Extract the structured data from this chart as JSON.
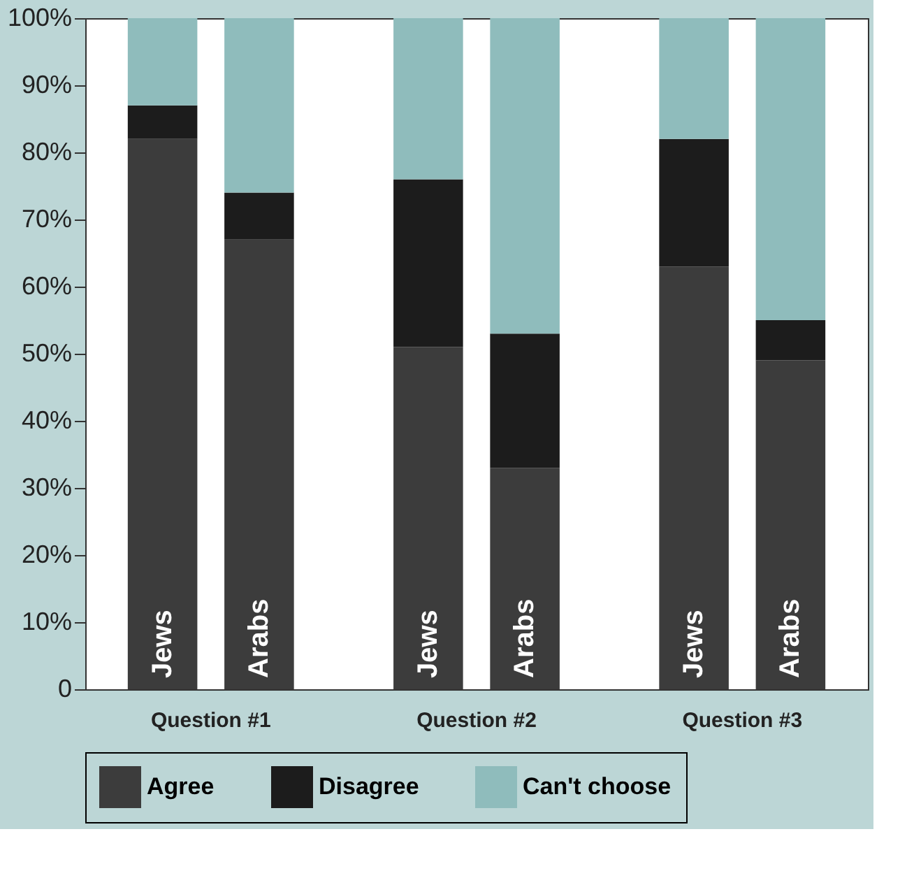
{
  "chart_data": {
    "type": "bar",
    "stacked": true,
    "categories": [
      "Jews",
      "Arabs",
      "Jews",
      "Arabs",
      "Jews",
      "Arabs"
    ],
    "series": [
      {
        "name": "Agree",
        "color": "#3c3c3c",
        "values": [
          82,
          67,
          51,
          33,
          63,
          49
        ]
      },
      {
        "name": "Disagree",
        "color": "#1c1c1c",
        "values": [
          5,
          7,
          25,
          20,
          19,
          6
        ]
      },
      {
        "name": "Can't choose",
        "color": "#8fbcbc",
        "values": [
          13,
          26,
          24,
          47,
          18,
          45
        ]
      }
    ],
    "ylim": [
      0,
      100
    ],
    "yticks": [
      {
        "value": 0,
        "label": "0"
      },
      {
        "value": 10,
        "label": "10%"
      },
      {
        "value": 20,
        "label": "20%"
      },
      {
        "value": 30,
        "label": "30%"
      },
      {
        "value": 40,
        "label": "40%"
      },
      {
        "value": 50,
        "label": "50%"
      },
      {
        "value": 60,
        "label": "60%"
      },
      {
        "value": 70,
        "label": "70%"
      },
      {
        "value": 80,
        "label": "80%"
      },
      {
        "value": 90,
        "label": "90%"
      },
      {
        "value": 100,
        "label": "100%"
      }
    ],
    "annotations": [
      "Question #1",
      "Question #2",
      "Question #3"
    ],
    "grid": false,
    "legend": "bottom"
  }
}
